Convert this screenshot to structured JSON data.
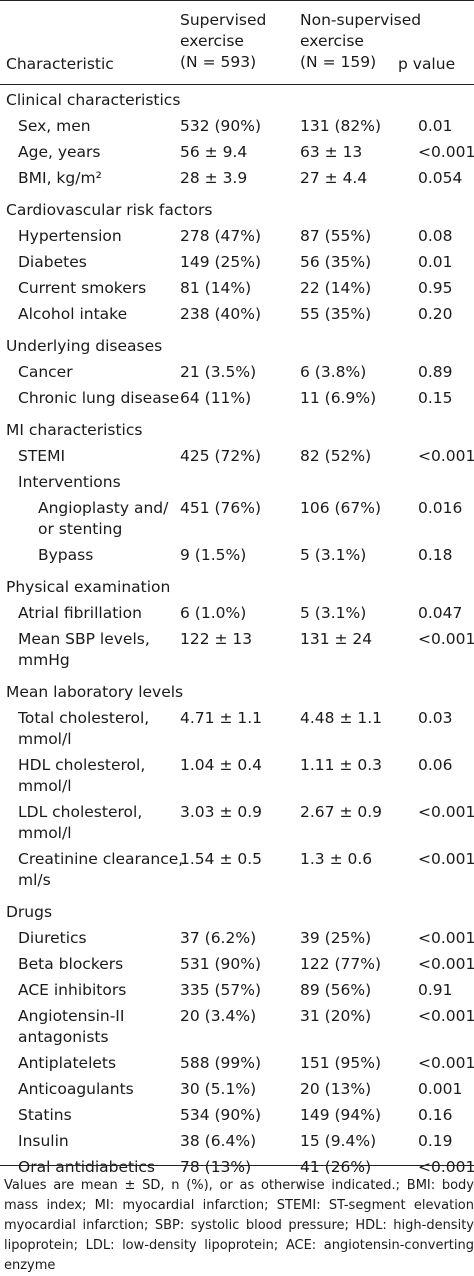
{
  "header": {
    "characteristic": "Characteristic",
    "col1_line1": "Supervised",
    "col1_line2": "exercise",
    "col1_line3": "(N = 593)",
    "col2_line1": "Non-supervised",
    "col2_line2": "exercise",
    "col2_line3": "(N = 159)",
    "col3": "p value"
  },
  "sections": [
    {
      "title": "Clinical characteristics",
      "rows": [
        {
          "label": [
            "Sex, men"
          ],
          "a": "532 (90%)",
          "b": "131 (82%)",
          "p": "0.01"
        },
        {
          "label": [
            "Age, years"
          ],
          "a": "56 ± 9.4",
          "b": "63 ± 13",
          "p": "<0.001"
        },
        {
          "label": [
            "BMI, kg/m²"
          ],
          "a": "28 ± 3.9",
          "b": "27 ± 4.4",
          "p": "0.054"
        }
      ]
    },
    {
      "title": "Cardiovascular risk factors",
      "rows": [
        {
          "label": [
            "Hypertension"
          ],
          "a": "278 (47%)",
          "b": "87 (55%)",
          "p": "0.08"
        },
        {
          "label": [
            "Diabetes"
          ],
          "a": "149 (25%)",
          "b": "56 (35%)",
          "p": "0.01"
        },
        {
          "label": [
            "Current smokers"
          ],
          "a": "81 (14%)",
          "b": "22 (14%)",
          "p": "0.95"
        },
        {
          "label": [
            "Alcohol intake"
          ],
          "a": "238 (40%)",
          "b": "55 (35%)",
          "p": "0.20"
        }
      ]
    },
    {
      "title": "Underlying diseases",
      "rows": [
        {
          "label": [
            "Cancer"
          ],
          "a": "21 (3.5%)",
          "b": "6 (3.8%)",
          "p": "0.89"
        },
        {
          "label": [
            "Chronic lung disease"
          ],
          "a": "64 (11%)",
          "b": "11 (6.9%)",
          "p": "0.15"
        }
      ]
    },
    {
      "title": "MI characteristics",
      "rows": [
        {
          "label": [
            "STEMI"
          ],
          "a": "425 (72%)",
          "b": "82 (52%)",
          "p": "<0.001"
        },
        {
          "label": [
            "Interventions"
          ],
          "a": "",
          "b": "",
          "p": ""
        },
        {
          "label": [
            "Angioplasty and/",
            "or stenting"
          ],
          "indent": 2,
          "a": "451 (76%)",
          "b": "106 (67%)",
          "p": "0.016"
        },
        {
          "label": [
            "Bypass"
          ],
          "indent": 2,
          "a": "9 (1.5%)",
          "b": "5 (3.1%)",
          "p": "0.18"
        }
      ]
    },
    {
      "title": "Physical examination",
      "rows": [
        {
          "label": [
            "Atrial fibrillation"
          ],
          "a": "6 (1.0%)",
          "b": "5 (3.1%)",
          "p": "0.047"
        },
        {
          "label": [
            "Mean SBP levels,",
            "mmHg"
          ],
          "a": "122 ± 13",
          "b": "131 ± 24",
          "p": "<0.001"
        }
      ]
    },
    {
      "title": "Mean laboratory levels",
      "rows": [
        {
          "label": [
            "Total cholesterol,",
            "mmol/l"
          ],
          "a": "4.71 ± 1.1",
          "b": "4.48 ± 1.1",
          "p": "0.03"
        },
        {
          "label": [
            "HDL cholesterol,",
            "mmol/l"
          ],
          "a": "1.04 ± 0.4",
          "b": "1.11 ± 0.3",
          "p": "0.06"
        },
        {
          "label": [
            "LDL cholesterol,",
            "mmol/l"
          ],
          "a": "3.03 ± 0.9",
          "b": "2.67 ± 0.9",
          "p": "<0.001"
        },
        {
          "label": [
            "Creatinine clearance,",
            "ml/s"
          ],
          "a": "1.54 ± 0.5",
          "b": "1.3 ± 0.6",
          "p": "<0.001"
        }
      ]
    },
    {
      "title": "Drugs",
      "rows": [
        {
          "label": [
            "Diuretics"
          ],
          "a": "37 (6.2%)",
          "b": "39 (25%)",
          "p": "<0.001"
        },
        {
          "label": [
            "Beta blockers"
          ],
          "a": "531 (90%)",
          "b": "122 (77%)",
          "p": "<0.001"
        },
        {
          "label": [
            "ACE inhibitors"
          ],
          "a": "335 (57%)",
          "b": "89 (56%)",
          "p": "0.91"
        },
        {
          "label": [
            "Angiotensin-II",
            "antagonists"
          ],
          "a": "20 (3.4%)",
          "b": "31 (20%)",
          "p": "<0.001"
        },
        {
          "label": [
            "Antiplatelets"
          ],
          "a": "588 (99%)",
          "b": "151 (95%)",
          "p": "<0.001"
        },
        {
          "label": [
            "Anticoagulants"
          ],
          "a": "30 (5.1%)",
          "b": "20 (13%)",
          "p": "0.001"
        },
        {
          "label": [
            "Statins"
          ],
          "a": "534 (90%)",
          "b": "149 (94%)",
          "p": "0.16"
        },
        {
          "label": [
            "Insulin"
          ],
          "a": "38 (6.4%)",
          "b": "15 (9.4%)",
          "p": "0.19"
        },
        {
          "label": [
            "Oral antidiabetics"
          ],
          "a": "78 (13%)",
          "b": "41 (26%)",
          "p": "<0.001"
        }
      ]
    }
  ],
  "footnote": "Values are mean ± SD, n (%), or as otherwise indicated.; BMI: body mass index; MI: myocardial infarction; STEMI: ST-segment elevation myocardial infarction; SBP: systolic blood pressure; HDL: high-density lipoprotein; LDL: low-density lipoprotein; ACE: angiotensin-converting enzyme"
}
